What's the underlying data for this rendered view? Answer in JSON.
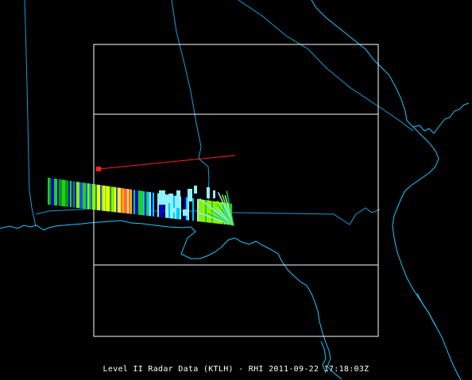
{
  "caption": "Level II Radar Data (KTLH) - RHI 2011-09-22 17:18:03Z",
  "colors": {
    "background": "#000000",
    "coastline": "#1ec8ff",
    "coastline_bright": "#3ff0ff",
    "state_border": "#1a9bd8",
    "domain_box": "#ffffff",
    "rhi_line": "#ff2020",
    "rhi_marker": "#ff2020",
    "radar_palette": [
      "#0000c8",
      "#2050ff",
      "#00c8ff",
      "#8ff0ff",
      "#00a000",
      "#1ed21e",
      "#8cf000",
      "#ffff00",
      "#ffb400",
      "#ff6464",
      "#ff0000"
    ]
  },
  "layers": {
    "state_borders": "on",
    "coastlines": "on",
    "domain_boxes": 2,
    "radar_reflectivity": "on",
    "rhi_cross_section": "on"
  }
}
